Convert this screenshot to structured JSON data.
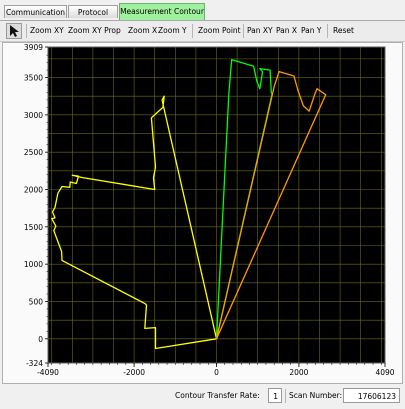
{
  "tabs": [
    {
      "label": "Communication",
      "active": false
    },
    {
      "label": "Protocol",
      "active": false
    },
    {
      "label": "Measurement Contour",
      "active": true
    }
  ],
  "toolbar": {
    "pointer_icon": "arrow-pointer-icon",
    "buttons": [
      "Zoom XY",
      "Zoom XY Prop",
      "Zoom X",
      "Zoom Y",
      "Zoom Point",
      "Pan XY",
      "Pan X",
      "Pan Y",
      "Reset"
    ]
  },
  "status": {
    "transfer_rate_label": "Contour Transfer Rate:",
    "transfer_rate_value": "1",
    "scan_number_label": "Scan Number:",
    "scan_number_value": "17606123"
  },
  "colors": {
    "plot_background": "#000000",
    "grid": "#6b6b18",
    "contour": "#ffff00",
    "field_green": "#00ff00",
    "field_orange": "#ff9900"
  },
  "chart_data": {
    "type": "line",
    "title": "",
    "xlabel": "",
    "ylabel": "",
    "xlim": [
      -4090,
      4090
    ],
    "ylim": [
      -324,
      3909
    ],
    "xticks": [
      -4090,
      -2000,
      0,
      2000,
      4090
    ],
    "xtick_labels": [
      "-4090",
      "-2000",
      "0",
      "2000",
      "4090"
    ],
    "yticks": [
      -324,
      0,
      500,
      1000,
      1500,
      2000,
      2500,
      3000,
      3500,
      3909
    ],
    "ytick_labels": [
      "-324",
      "0",
      "500",
      "1000",
      "1500",
      "2000",
      "2500",
      "3000",
      "3500",
      "3909"
    ],
    "grid": true,
    "series": [
      {
        "color": "#ffff00",
        "x": [
          0,
          -1480,
          -1480,
          -1740,
          -1700,
          -1730,
          -3750,
          -3760,
          -3950,
          -3900,
          -4000,
          -3920,
          -3980,
          -3920,
          -3850,
          -3750,
          -3560,
          -3550,
          -3400,
          -3350,
          -3500,
          -3250,
          -1500,
          -1530,
          -1480,
          -1580,
          -1300,
          -1270,
          -1320,
          -1290,
          0
        ],
        "y": [
          0,
          -130,
          150,
          140,
          450,
          470,
          1050,
          1170,
          1450,
          1510,
          1610,
          1620,
          1700,
          1760,
          1950,
          2040,
          2030,
          2100,
          2080,
          2180,
          2190,
          2160,
          2000,
          2160,
          2300,
          2960,
          3100,
          3250,
          3200,
          3120,
          0
        ]
      },
      {
        "color": "#00ff00",
        "x": [
          0,
          300,
          370,
          900,
          980,
          1050,
          1120,
          1050,
          1300,
          1330,
          1350,
          0
        ],
        "y": [
          0,
          3300,
          3740,
          3650,
          3450,
          3350,
          3580,
          3620,
          3600,
          3300,
          3280,
          0
        ]
      },
      {
        "color": "#ff9900",
        "x": [
          0,
          1400,
          1520,
          1880,
          1980,
          2110,
          2250,
          2380,
          2440,
          2650,
          0
        ],
        "y": [
          0,
          3380,
          3580,
          3520,
          3320,
          3120,
          3050,
          3270,
          3350,
          3270,
          0
        ]
      }
    ]
  }
}
